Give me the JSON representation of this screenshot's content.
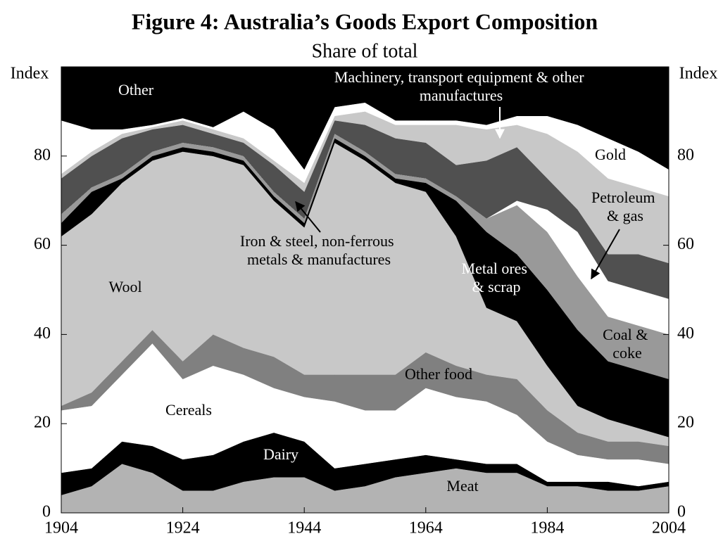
{
  "chart_data": {
    "type": "stacked-area",
    "title": "Figure 4: Australia’s Goods Export Composition",
    "subtitle": "Share of total",
    "y_label": "Index",
    "y2_label": "Index",
    "x": [
      1904,
      1909,
      1914,
      1919,
      1924,
      1929,
      1934,
      1939,
      1944,
      1949,
      1954,
      1959,
      1964,
      1969,
      1974,
      1979,
      1984,
      1989,
      1994,
      1999,
      2004
    ],
    "xlim": [
      1904,
      2004
    ],
    "xticks": [
      1904,
      1924,
      1944,
      1964,
      1984,
      2004
    ],
    "ylim": [
      0,
      100
    ],
    "yticks": [
      0,
      20,
      40,
      60,
      80
    ],
    "y2lim": [
      0,
      100
    ],
    "y2ticks": [
      0,
      20,
      40,
      60,
      80
    ],
    "series": [
      {
        "name": "Meat",
        "color": "#b3b3b3",
        "values": [
          4,
          6,
          11,
          9,
          5,
          5,
          7,
          8,
          8,
          5,
          6,
          8,
          9,
          10,
          9,
          9,
          6,
          6,
          5,
          5,
          6
        ]
      },
      {
        "name": "Dairy",
        "color": "#000000",
        "values": [
          5,
          4,
          5,
          6,
          7,
          8,
          9,
          10,
          8,
          5,
          5,
          4,
          4,
          2,
          2,
          2,
          1,
          1,
          2,
          1,
          1
        ]
      },
      {
        "name": "Cereals",
        "color": "#ffffff",
        "values": [
          14,
          14,
          15,
          23,
          18,
          20,
          15,
          10,
          10,
          15,
          12,
          11,
          15,
          14,
          14,
          11,
          9,
          6,
          5,
          6,
          4
        ]
      },
      {
        "name": "Other food",
        "color": "#808080",
        "values": [
          1,
          3,
          3,
          3,
          4,
          7,
          6,
          7,
          5,
          6,
          8,
          8,
          8,
          7,
          6,
          8,
          7,
          5,
          4,
          4,
          4
        ]
      },
      {
        "name": "Wool",
        "color": "#c8c8c8",
        "values": [
          38,
          40,
          40,
          38,
          47,
          40,
          41,
          35,
          33,
          52,
          48,
          43,
          36,
          29,
          15,
          13,
          10,
          6,
          5,
          3,
          2
        ]
      },
      {
        "name": "Metal ores & scrap",
        "color": "#000000",
        "values": [
          3,
          5,
          1,
          1,
          1,
          1,
          1,
          1,
          1,
          1,
          1,
          1,
          2,
          8,
          17,
          15,
          17,
          17,
          13,
          13,
          13
        ]
      },
      {
        "name": "Coal & coke",
        "color": "#999999",
        "values": [
          2,
          1,
          1,
          1,
          1,
          1,
          1,
          1,
          1,
          1,
          1,
          1,
          1,
          1,
          3,
          11,
          13,
          12,
          10,
          10,
          10
        ]
      },
      {
        "name": "Petroleum & gas",
        "color": "#ffffff",
        "values": [
          0,
          0,
          0,
          0,
          0,
          0,
          0,
          0,
          0,
          0,
          0,
          0,
          0,
          0,
          0,
          1,
          5,
          10,
          8,
          8,
          8
        ]
      },
      {
        "name": "Iron & steel, non-ferrous metals & manufactures",
        "color": "#505050",
        "values": [
          8,
          7,
          8,
          5,
          4,
          3,
          3,
          6,
          6,
          3,
          6,
          8,
          8,
          7,
          13,
          12,
          7,
          5,
          6,
          8,
          8
        ]
      },
      {
        "name": "Machinery, transport equipment & other manufactures",
        "color": "#c8c8c8",
        "values": [
          1,
          1,
          1,
          0.5,
          1,
          1,
          1,
          1,
          2,
          1,
          3,
          3,
          4,
          9,
          7,
          5,
          10,
          13,
          17,
          15,
          15
        ]
      },
      {
        "name": "Gold",
        "color": "#ffffff",
        "values": [
          12,
          5,
          1,
          0.5,
          0.5,
          0.5,
          6,
          7,
          3,
          2,
          2,
          1,
          1,
          1,
          1,
          2,
          4,
          6,
          9,
          8,
          6
        ]
      },
      {
        "name": "Other",
        "color": "#000000",
        "values": [
          12,
          14,
          14,
          13,
          11.5,
          13.5,
          10,
          14,
          23,
          9,
          8,
          12,
          12,
          12,
          13,
          11,
          11,
          13,
          16,
          19,
          23
        ]
      }
    ]
  }
}
